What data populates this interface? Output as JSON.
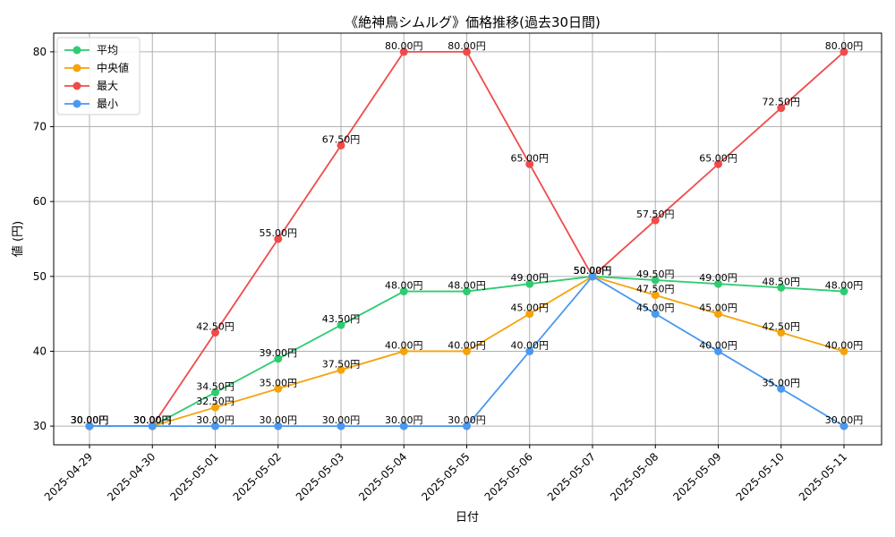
{
  "chart_data": {
    "type": "line",
    "title": "《絶神鳥シムルグ》価格推移(過去30日間)",
    "xlabel": "日付",
    "ylabel": "値 (円)",
    "ylim": [
      27.5,
      82.5
    ],
    "yticks": [
      30,
      40,
      50,
      60,
      70,
      80
    ],
    "grid": true,
    "legend_position": "top-left",
    "value_suffix": "円",
    "categories": [
      "2025-04-29",
      "2025-04-30",
      "2025-05-01",
      "2025-05-02",
      "2025-05-03",
      "2025-05-04",
      "2025-05-05",
      "2025-05-06",
      "2025-05-07",
      "2025-05-08",
      "2025-05-09",
      "2025-05-10",
      "2025-05-11"
    ],
    "series": [
      {
        "name": "平均",
        "color": "#2ecc71",
        "values": [
          30,
          30,
          34.5,
          39,
          43.5,
          48,
          48,
          49,
          50,
          49.5,
          49,
          48.5,
          48
        ]
      },
      {
        "name": "中央値",
        "color": "#f5a30a",
        "values": [
          30,
          30,
          32.5,
          35,
          37.5,
          40,
          40,
          45,
          50,
          47.5,
          45,
          42.5,
          40
        ]
      },
      {
        "name": "最大",
        "color": "#ef4b4b",
        "values": [
          30,
          30,
          42.5,
          55,
          67.5,
          80,
          80,
          65,
          50,
          57.5,
          65,
          72.5,
          80
        ]
      },
      {
        "name": "最小",
        "color": "#4a98f0",
        "values": [
          30,
          30,
          30,
          30,
          30,
          30,
          30,
          40,
          50,
          45,
          40,
          35,
          30
        ]
      }
    ]
  }
}
